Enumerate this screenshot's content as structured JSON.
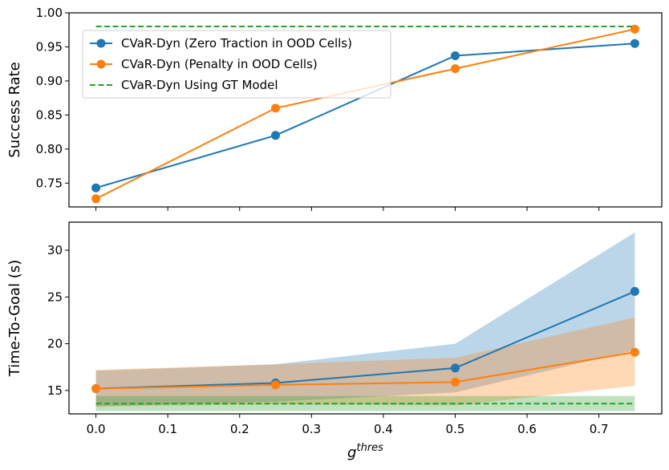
{
  "chart_data": [
    {
      "type": "line",
      "ylabel": "Success Rate",
      "xlabel": "",
      "xlim": [
        -0.0375,
        0.7875
      ],
      "ylim": [
        0.715,
        1.0
      ],
      "xticks": [
        0.0,
        0.1,
        0.2,
        0.3,
        0.4,
        0.5,
        0.6,
        0.7
      ],
      "yticks": [
        0.75,
        0.8,
        0.85,
        0.9,
        0.95,
        1.0
      ],
      "ytick_labels": [
        "0.75",
        "0.80",
        "0.85",
        "0.90",
        "0.95",
        "1.00"
      ],
      "show_xtick_labels": false,
      "legend_position": "upper-left",
      "x": [
        0.0,
        0.25,
        0.5,
        0.75
      ],
      "series": [
        {
          "name": "CVaR-Dyn (Zero Traction in OOD Cells)",
          "color": "#1f77b4",
          "style": "solid-marker",
          "values": [
            0.743,
            0.82,
            0.937,
            0.955
          ]
        },
        {
          "name": "CVaR-Dyn (Penalty in OOD Cells)",
          "color": "#ff7f0e",
          "style": "solid-marker",
          "values": [
            0.727,
            0.86,
            0.918,
            0.976
          ]
        },
        {
          "name": "CVaR-Dyn Using GT Model",
          "color": "#2ca02c",
          "style": "dashed",
          "values": [
            0.98,
            0.98,
            0.98,
            0.98
          ]
        }
      ]
    },
    {
      "type": "line",
      "ylabel": "Time-To-Goal (s)",
      "xlabel": "g^thres",
      "xlabel_base": "g",
      "xlabel_sup": "thres",
      "xlim": [
        -0.0375,
        0.7875
      ],
      "ylim": [
        12.5,
        33.0
      ],
      "xticks": [
        0.0,
        0.1,
        0.2,
        0.3,
        0.4,
        0.5,
        0.6,
        0.7
      ],
      "xtick_labels": [
        "0.0",
        "0.1",
        "0.2",
        "0.3",
        "0.4",
        "0.5",
        "0.6",
        "0.7"
      ],
      "yticks": [
        15,
        20,
        25,
        30
      ],
      "ytick_labels": [
        "15",
        "20",
        "25",
        "30"
      ],
      "show_xtick_labels": true,
      "x": [
        0.0,
        0.25,
        0.5,
        0.75
      ],
      "series": [
        {
          "name": "CVaR-Dyn (Zero Traction in OOD Cells)",
          "color": "#1f77b4",
          "style": "solid-marker",
          "values": [
            15.2,
            15.8,
            17.4,
            25.6
          ],
          "lower": [
            13.3,
            13.8,
            14.8,
            19.3
          ],
          "upper": [
            17.1,
            17.8,
            20.0,
            31.9
          ]
        },
        {
          "name": "CVaR-Dyn (Penalty in OOD Cells)",
          "color": "#ff7f0e",
          "style": "solid-marker",
          "values": [
            15.2,
            15.6,
            15.9,
            19.1
          ],
          "lower": [
            13.3,
            13.5,
            13.4,
            15.5
          ],
          "upper": [
            17.2,
            17.8,
            18.5,
            22.8
          ]
        },
        {
          "name": "CVaR-Dyn Using GT Model",
          "color": "#2ca02c",
          "style": "dashed",
          "values": [
            13.6,
            13.6,
            13.6,
            13.6
          ],
          "lower": [
            12.8,
            12.8,
            12.8,
            12.8
          ],
          "upper": [
            14.4,
            14.4,
            14.4,
            14.4
          ]
        }
      ]
    }
  ]
}
